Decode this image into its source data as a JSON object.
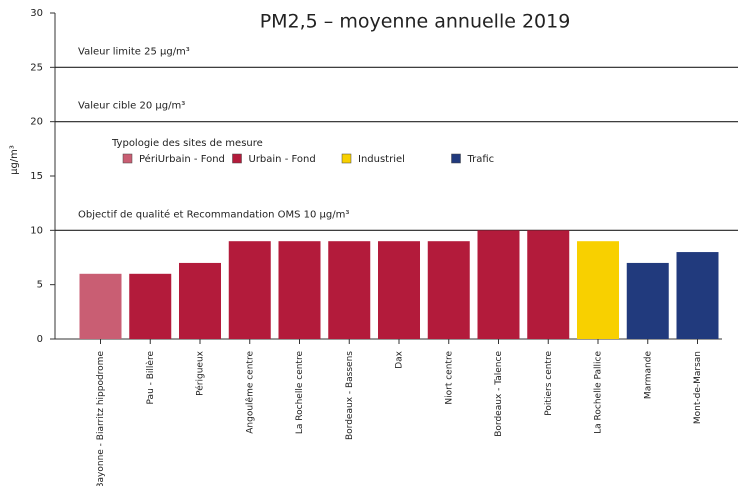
{
  "chart_data": {
    "type": "bar",
    "title": "PM2,5 – moyenne annuelle 2019",
    "y_label": "µg/m³",
    "legend_title": "Typologie des sites de mesure",
    "categories": [
      "Bayonne - Biarritz hippodrome",
      "Pau - Billère",
      "Périgueux",
      "Angoulême centre",
      "La Rochelle centre",
      "Bordeaux - Bassens",
      "Dax",
      "Niort centre",
      "Bordeaux - Talence",
      "Poitiers centre",
      "La Rochelle Pallice",
      "Marmande",
      "Mont-de-Marsan"
    ],
    "series": [
      {
        "name": "PériUrbain - Fond",
        "color": "#c95e73",
        "values": [
          6,
          null,
          null,
          null,
          null,
          null,
          null,
          null,
          null,
          null,
          null,
          null,
          null
        ]
      },
      {
        "name": "Urbain - Fond",
        "color": "#b31b3b",
        "values": [
          null,
          6,
          7,
          9,
          9,
          9,
          9,
          9,
          10,
          10,
          null,
          null,
          null
        ]
      },
      {
        "name": "Industriel",
        "color": "#f8d000",
        "values": [
          null,
          null,
          null,
          null,
          null,
          null,
          null,
          null,
          null,
          null,
          9,
          null,
          null
        ]
      },
      {
        "name": "Trafic",
        "color": "#213a7d",
        "values": [
          null,
          null,
          null,
          null,
          null,
          null,
          null,
          null,
          null,
          null,
          null,
          7,
          8
        ]
      }
    ],
    "reference_lines": [
      {
        "value": 25,
        "label": "Valeur limite 25 µg/m³"
      },
      {
        "value": 20,
        "label": "Valeur cible 20 µg/m³"
      },
      {
        "value": 10,
        "label": "Objectif de qualité et Recommandation OMS 10 µg/m³"
      }
    ],
    "ylim": [
      0,
      30
    ],
    "yticks": [
      0,
      5,
      10,
      15,
      20,
      25,
      30
    ],
    "grid": false
  }
}
